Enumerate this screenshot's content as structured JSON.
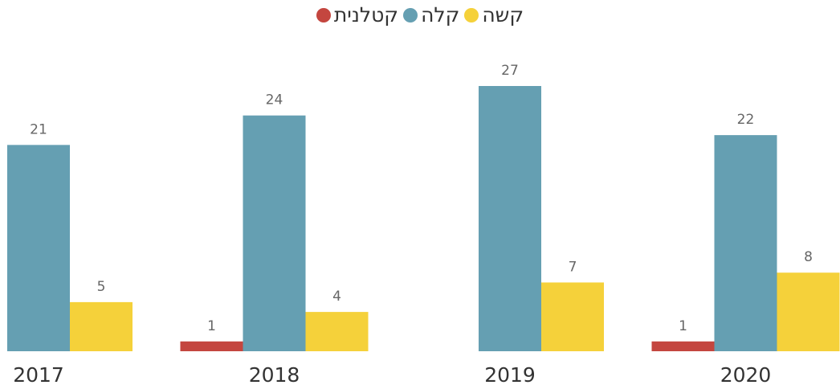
{
  "chart_data": {
    "type": "bar",
    "categories": [
      "2017",
      "2018",
      "2019",
      "2020"
    ],
    "series": [
      {
        "name": "קטלנית",
        "color": "#c4463f",
        "values": [
          null,
          1,
          null,
          1
        ]
      },
      {
        "name": "קלה",
        "color": "#659fb2",
        "values": [
          21,
          24,
          27,
          22
        ]
      },
      {
        "name": "קשה",
        "color": "#f5d13a",
        "values": [
          5,
          4,
          7,
          8
        ]
      }
    ]
  }
}
